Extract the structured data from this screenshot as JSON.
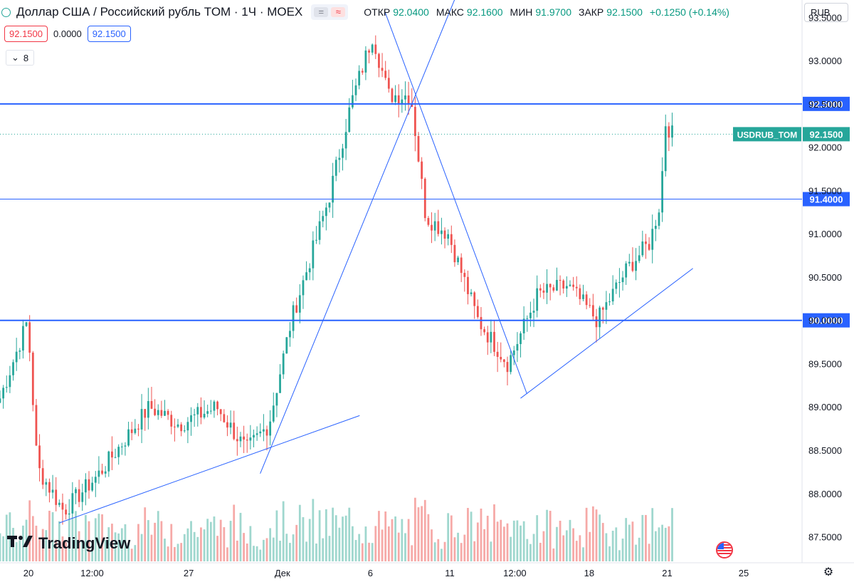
{
  "header": {
    "symbol_title": "Доллар США / Российский рубль TOM · 1Ч · MOEX",
    "ohlc": [
      {
        "k": "ОТКР",
        "v": "92.0400"
      },
      {
        "k": "МАКС",
        "v": "92.1600"
      },
      {
        "k": "МИН",
        "v": "91.9700"
      },
      {
        "k": "ЗАКР",
        "v": "92.1500"
      }
    ],
    "change": "+0.1250 (+0.14%)"
  },
  "bid": "92.1500",
  "spread": "0.0000",
  "ask": "92.1500",
  "indicator_count": "8",
  "currency": "RUB",
  "brand": "TradingView",
  "colors": {
    "up": "#26a69a",
    "down": "#ef5350",
    "line": "#2962ff",
    "last": "#26a69a"
  },
  "icons": [
    "chevron-down-icon",
    "compare-icon",
    "usd-flag-icon",
    "gear-icon"
  ],
  "chart_data": {
    "type": "candlestick",
    "title": "Доллар США / Российский рубль TOM · 1Ч · MOEX",
    "ylim": [
      87.2,
      93.7
    ],
    "y_ticks": [
      87.5,
      88.0,
      88.5,
      89.0,
      89.5,
      90.0,
      90.5,
      91.0,
      91.5,
      92.0,
      92.5,
      93.0,
      93.5
    ],
    "x_ticks": [
      {
        "label": "20",
        "x": 0.0
      },
      {
        "label": "12:00",
        "x": 0.089
      },
      {
        "label": "27",
        "x": 0.224
      },
      {
        "label": "Дек",
        "x": 0.355
      },
      {
        "label": "6",
        "x": 0.478
      },
      {
        "label": "11",
        "x": 0.589
      },
      {
        "label": "12:00",
        "x": 0.68
      },
      {
        "label": "18",
        "x": 0.784
      },
      {
        "label": "21",
        "x": 0.893
      },
      {
        "label": "25",
        "x": 1.0
      }
    ],
    "horizontal_levels": [
      {
        "price": 92.5,
        "label": "92.5000",
        "width": 2
      },
      {
        "price": 91.4,
        "label": "91.4000",
        "width": 1
      },
      {
        "price": 90.0,
        "label": "90.0000",
        "width": 2
      }
    ],
    "last_price": {
      "price": 92.15,
      "label": "92.1500",
      "symbol": "USDRUB_TOM"
    },
    "trend_lines": [
      {
        "from": [
          0.043,
          87.66
        ],
        "to": [
          0.463,
          88.9
        ]
      },
      {
        "from": [
          0.324,
          88.23
        ],
        "to": [
          0.608,
          93.95
        ]
      },
      {
        "from": [
          0.499,
          93.55
        ],
        "to": [
          0.697,
          89.15
        ]
      },
      {
        "from": [
          0.688,
          89.1
        ],
        "to": [
          0.929,
          90.6
        ]
      }
    ],
    "key_points": [
      {
        "x": 0.0,
        "close": 89.1
      },
      {
        "x": 0.037,
        "close": 90.0
      },
      {
        "x": 0.05,
        "close": 88.3
      },
      {
        "x": 0.085,
        "close": 87.8
      },
      {
        "x": 0.13,
        "close": 88.2
      },
      {
        "x": 0.2,
        "close": 89.0
      },
      {
        "x": 0.24,
        "close": 88.8
      },
      {
        "x": 0.29,
        "close": 89.0
      },
      {
        "x": 0.33,
        "close": 88.5
      },
      {
        "x": 0.36,
        "close": 88.8
      },
      {
        "x": 0.39,
        "close": 90.0
      },
      {
        "x": 0.44,
        "close": 91.4
      },
      {
        "x": 0.47,
        "close": 92.5
      },
      {
        "x": 0.499,
        "close": 93.3
      },
      {
        "x": 0.52,
        "close": 92.6
      },
      {
        "x": 0.55,
        "close": 92.6
      },
      {
        "x": 0.57,
        "close": 91.2
      },
      {
        "x": 0.6,
        "close": 91.0
      },
      {
        "x": 0.64,
        "close": 90.0
      },
      {
        "x": 0.68,
        "close": 89.5
      },
      {
        "x": 0.72,
        "close": 90.3
      },
      {
        "x": 0.76,
        "close": 90.4
      },
      {
        "x": 0.8,
        "close": 90.0
      },
      {
        "x": 0.84,
        "close": 90.6
      },
      {
        "x": 0.87,
        "close": 90.9
      },
      {
        "x": 0.885,
        "close": 91.4
      },
      {
        "x": 0.89,
        "close": 92.3
      },
      {
        "x": 0.9,
        "close": 92.15
      }
    ]
  }
}
